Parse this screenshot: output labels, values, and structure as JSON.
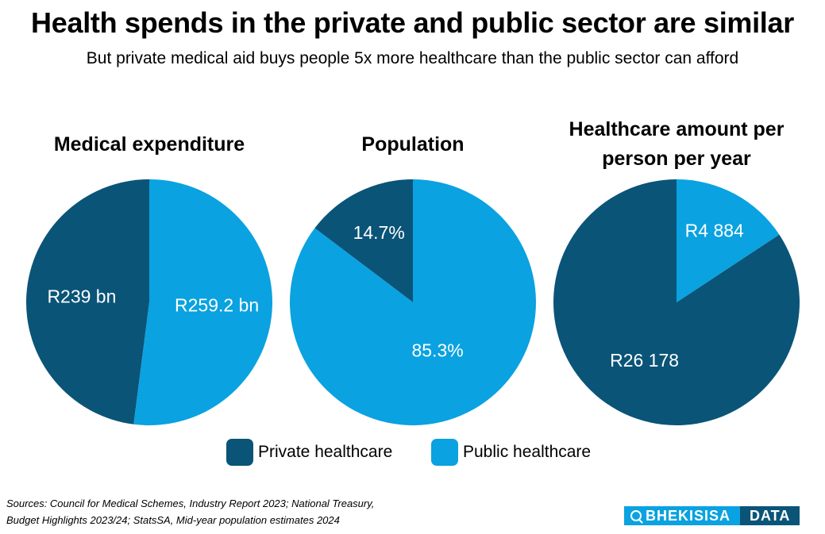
{
  "title": "Health spends in the private and public sector are similar",
  "subtitle": "But private medical aid buys people 5x more healthcare than the public sector can afford",
  "colors": {
    "private": "#0a5478",
    "public": "#0aa2e0",
    "label": "#ffffff"
  },
  "chart_data": [
    {
      "type": "pie",
      "title": "Medical expenditure",
      "slices": [
        {
          "category": "Private healthcare",
          "value": 239,
          "label": "R239 bn"
        },
        {
          "category": "Public healthcare",
          "value": 259.2,
          "label": "R259.2 bn"
        }
      ]
    },
    {
      "type": "pie",
      "title": "Population",
      "slices": [
        {
          "category": "Private healthcare",
          "value": 14.7,
          "label": "14.7%"
        },
        {
          "category": "Public healthcare",
          "value": 85.3,
          "label": "85.3%"
        }
      ]
    },
    {
      "type": "pie",
      "title": "Healthcare amount per person per year",
      "slices": [
        {
          "category": "Private healthcare",
          "value": 26178,
          "label": "R26 178"
        },
        {
          "category": "Public healthcare",
          "value": 4884,
          "label": "R4 884"
        }
      ]
    }
  ],
  "legend": {
    "private_label": "Private healthcare",
    "public_label": "Public healthcare"
  },
  "source": {
    "line1": "Sources: Council for Medical Schemes, Industry Report 2023; National Treasury,",
    "line2": "Budget Highlights 2023/24; StatsSA, Mid-year population estimates 2024"
  },
  "logo": {
    "left": "BHEKISISA",
    "right": "DATA"
  }
}
